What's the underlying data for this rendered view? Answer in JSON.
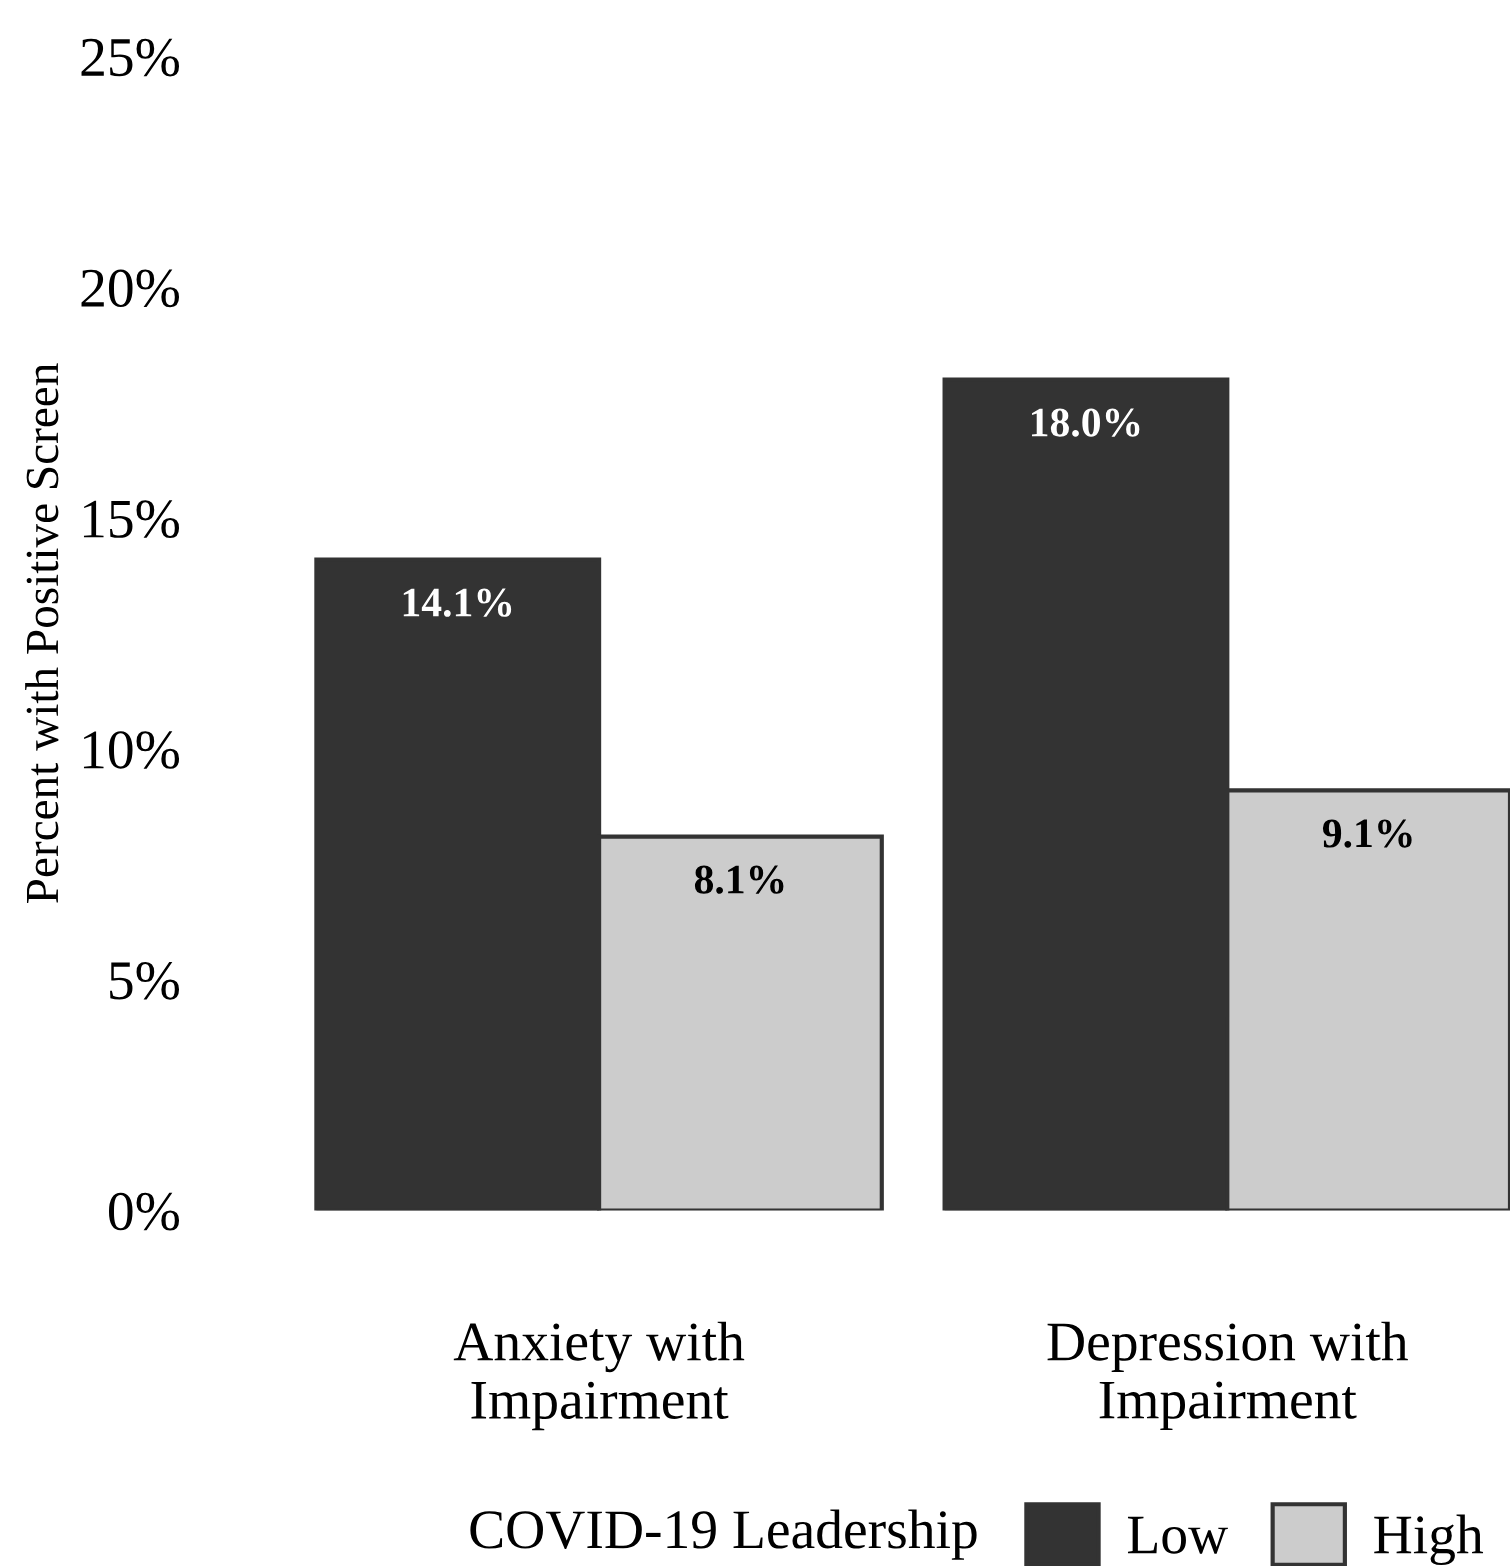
{
  "chart_data": {
    "type": "bar",
    "ylabel": "Percent with Positive Screen",
    "legend_title": "COVID-19 Leadership",
    "categories": [
      "Anxiety with\nImpairment",
      "Depression with\nImpairment"
    ],
    "series": [
      {
        "name": "Low",
        "color": "#333333",
        "values": [
          14.1,
          18.0
        ],
        "value_labels": [
          "14.1%",
          "18.0%"
        ]
      },
      {
        "name": "High",
        "color": "#cccccc",
        "values": [
          8.1,
          9.1
        ],
        "value_labels": [
          "8.1%",
          "9.1%"
        ]
      }
    ],
    "ylim": [
      0,
      25
    ],
    "yticks": [
      {
        "value": 0,
        "label": "0%"
      },
      {
        "value": 5,
        "label": "5%"
      },
      {
        "value": 10,
        "label": "10%"
      },
      {
        "value": 15,
        "label": "15%"
      },
      {
        "value": 20,
        "label": "20%"
      },
      {
        "value": 25,
        "label": "25%"
      }
    ],
    "grid": false,
    "legend": "bottom"
  }
}
